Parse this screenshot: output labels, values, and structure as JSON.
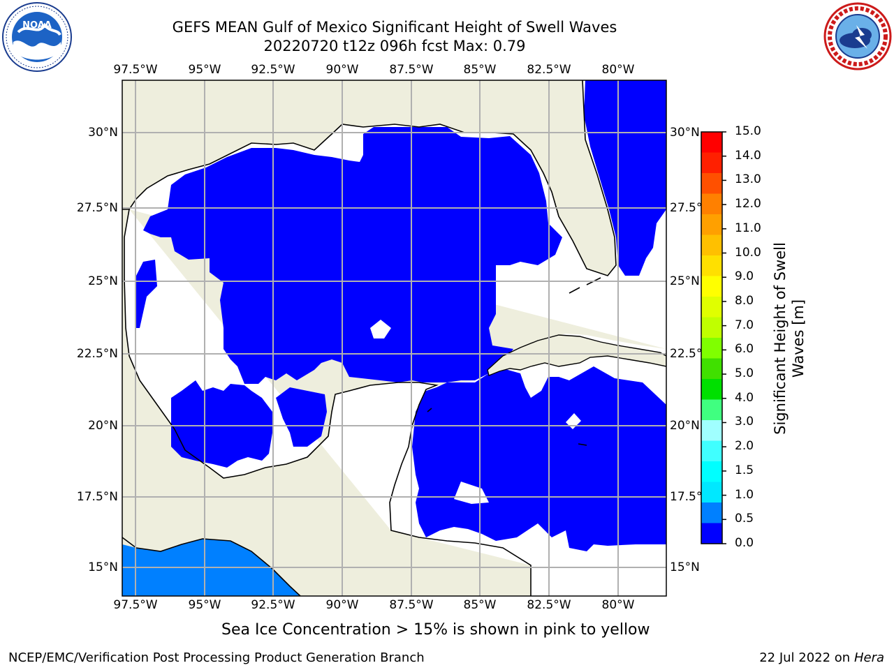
{
  "header": {
    "title_line1": "GEFS MEAN Gulf of Mexico Significant Height of Swell Waves",
    "title_line2": "20220720 t12z 096h fcst   Max: 0.79"
  },
  "logos": {
    "left": {
      "text": "NOAA",
      "ring_text": "NATIONAL OCEANIC AND ATMOSPHERIC ADMINISTRATION · U.S. DEPARTMENT OF COMMERCE"
    },
    "right": {
      "ring_text": "NATIONAL WEATHER SERVICE"
    }
  },
  "map": {
    "lon_labels": [
      "97.5°W",
      "95°W",
      "92.5°W",
      "90°W",
      "87.5°W",
      "85°W",
      "82.5°W",
      "80°W"
    ],
    "lat_labels": [
      "30°N",
      "27.5°N",
      "25°N",
      "22.5°N",
      "20°N",
      "17.5°N",
      "15°N"
    ],
    "colors": {
      "land": "#eeeedd",
      "swell_low": "#0000ff",
      "swell_mid": "#0080ff",
      "grid": "#b0b0b0"
    }
  },
  "colorbar": {
    "label_line1": "Significant Height of Swell",
    "label_line2": "Waves [m]",
    "ticks": [
      "15.0",
      "14.0",
      "13.0",
      "12.0",
      "11.0",
      "10.0",
      "9.0",
      "8.0",
      "7.0",
      "6.0",
      "5.0",
      "4.0",
      "3.0",
      "2.0",
      "1.5",
      "1.0",
      "0.5",
      "0.0"
    ],
    "colors": [
      "#ff0000",
      "#ff2000",
      "#ff5000",
      "#ff8000",
      "#ffa000",
      "#ffc000",
      "#ffe000",
      "#ffff00",
      "#e0ff00",
      "#c0ff00",
      "#80ff00",
      "#40e000",
      "#00e000",
      "#40ff80",
      "#a0ffff",
      "#40ffff",
      "#00ffff",
      "#00e8ff",
      "#0080ff",
      "#0000ff"
    ]
  },
  "caption": "Sea Ice Concentration > 15% is shown in pink to yellow",
  "footer": {
    "left": "NCEP/EMC/Verification Post Processing Product Generation Branch",
    "right_date": "22 Jul 2022 on ",
    "right_host": "Hera"
  }
}
